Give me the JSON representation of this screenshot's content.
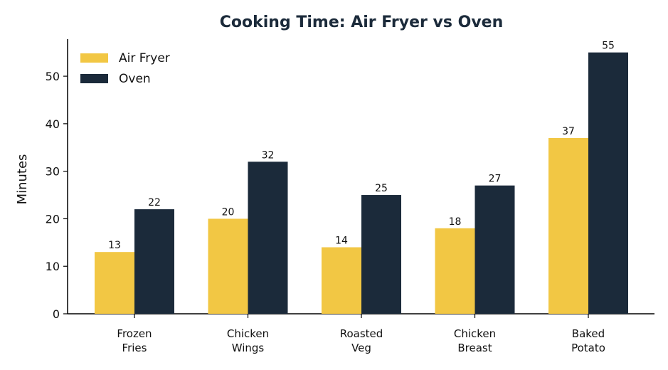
{
  "chart_data": {
    "type": "grouped_bar",
    "title": "Cooking Time: Air Fryer vs Oven",
    "y_label": "Minutes",
    "categories": [
      "Frozen\nFries",
      "Chicken\nWings",
      "Roasted\nVeg",
      "Chicken\nBreast",
      "Baked\nPotato"
    ],
    "series": [
      {
        "name": "Air Fryer",
        "color": "#f2c744",
        "values": [
          13,
          20,
          14,
          18,
          37
        ]
      },
      {
        "name": "Oven",
        "color": "#1b2a3a",
        "values": [
          22,
          32,
          25,
          27,
          55
        ]
      }
    ],
    "ylim": [
      0,
      57.8
    ],
    "yticks": [
      0,
      10,
      20,
      30,
      40,
      50
    ],
    "grid": false,
    "legend": "upper left"
  }
}
